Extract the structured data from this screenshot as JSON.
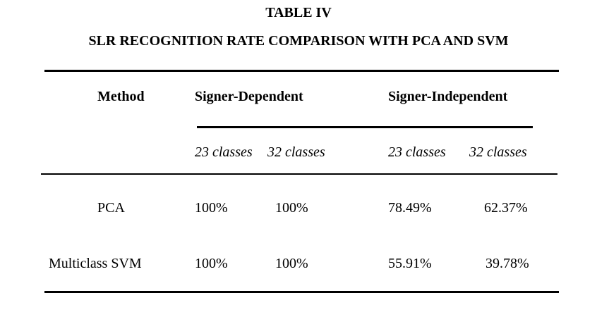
{
  "table": {
    "label": "TABLE IV",
    "caption": "SLR RECOGNITION RATE COMPARISON WITH PCA AND SVM",
    "headers": {
      "method": "Method",
      "group_dependent": "Signer-Dependent",
      "group_independent": "Signer-Independent",
      "sub": [
        "23 classes",
        "32 classes",
        "23 classes",
        "32 classes"
      ]
    },
    "rows": [
      {
        "method": "PCA",
        "values": [
          "100%",
          "100%",
          "78.49%",
          "62.37%"
        ]
      },
      {
        "method": "Multiclass SVM",
        "values": [
          "100%",
          "100%",
          "55.91%",
          "39.78%"
        ]
      }
    ]
  }
}
